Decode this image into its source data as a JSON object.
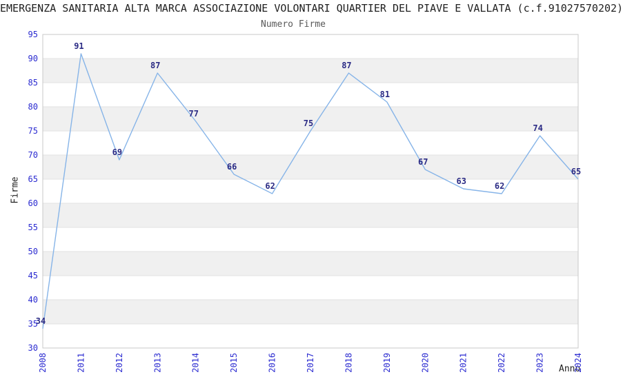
{
  "chart_data": {
    "type": "line",
    "title": "EMERGENZA SANITARIA ALTA MARCA ASSOCIAZIONE VOLONTARI QUARTIER DEL PIAVE E VALLATA (c.f.91027570202)",
    "subtitle": "Numero Firme",
    "xlabel": "Anno",
    "ylabel": "Firme",
    "categories": [
      "2008",
      "2011",
      "2012",
      "2013",
      "2014",
      "2015",
      "2016",
      "2017",
      "2018",
      "2019",
      "2020",
      "2021",
      "2022",
      "2023",
      "2024"
    ],
    "values": [
      34,
      91,
      69,
      87,
      77,
      66,
      62,
      75,
      87,
      81,
      67,
      63,
      62,
      74,
      65
    ],
    "ylim": [
      30,
      95
    ],
    "ytick_step": 5,
    "legend": "none",
    "grid": "horizontal-bands-and-lines",
    "x_tick_rotation": 90,
    "colors": {
      "line": "#86b4e8",
      "tick_label": "#2a2ad0",
      "point_label": "#2b2b85",
      "band": "#f0f0f0",
      "grid": "#e2e2e2",
      "border": "#c8c8c8",
      "title": "#1f1f1f",
      "subtitle": "#595959"
    }
  }
}
